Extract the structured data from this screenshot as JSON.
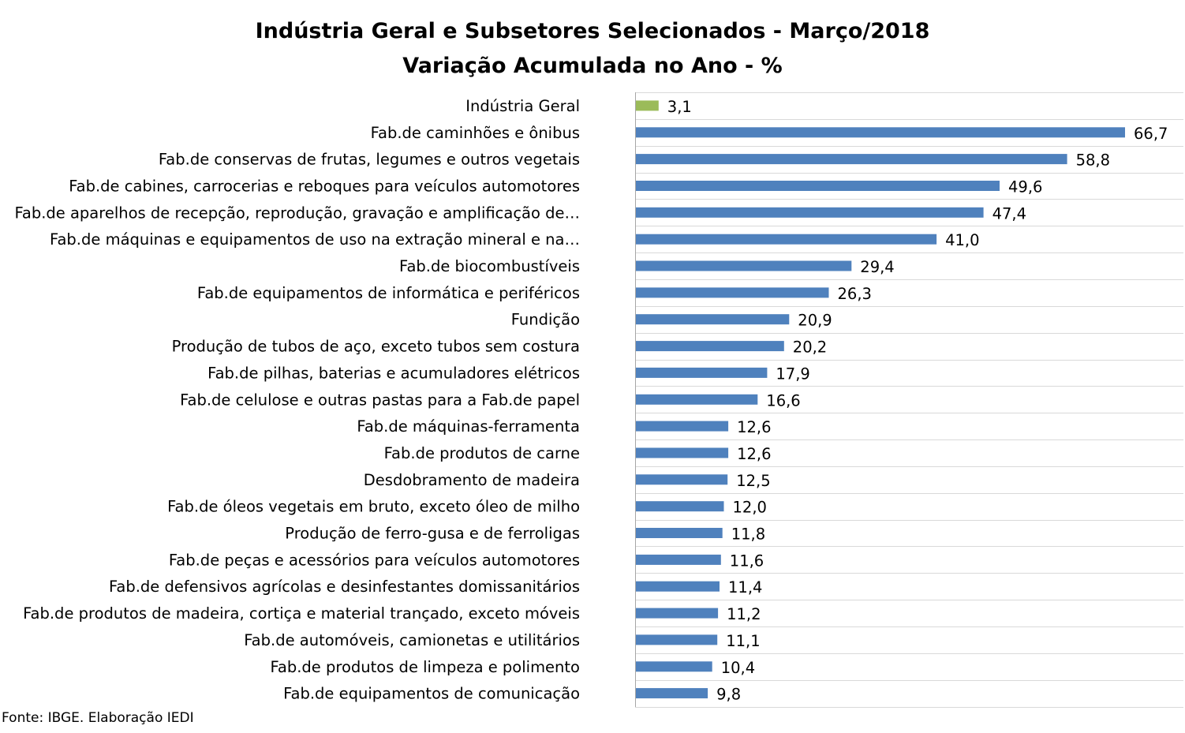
{
  "chart_data": {
    "type": "bar",
    "orientation": "horizontal",
    "title": "Indústria Geral e Subsetores Selecionados - Março/2018",
    "subtitle": "Variação Acumulada no Ano - %",
    "categories": [
      "Indústria Geral",
      "Fab.de caminhões e ônibus",
      "Fab.de conservas de frutas, legumes e outros vegetais",
      "Fab.de cabines, carrocerias e reboques para veículos automotores",
      "Fab.de aparelhos de recepção, reprodução, gravação e amplificação de…",
      "Fab.de máquinas e equipamentos de uso na extração mineral e na…",
      "Fab.de biocombustíveis",
      "Fab.de equipamentos de informática e periféricos",
      "Fundição",
      "Produção de tubos de aço, exceto tubos sem costura",
      "Fab.de pilhas, baterias e acumuladores elétricos",
      "Fab.de celulose e outras pastas para a Fab.de papel",
      "Fab.de máquinas-ferramenta",
      "Fab.de produtos de carne",
      "Desdobramento de madeira",
      "Fab.de óleos vegetais em bruto, exceto óleo de milho",
      "Produção de ferro-gusa e de ferroligas",
      "Fab.de peças e acessórios para veículos automotores",
      "Fab.de defensivos agrícolas e desinfestantes domissanitários",
      "Fab.de produtos de madeira, cortiça e material trançado, exceto móveis",
      "Fab.de automóveis, camionetas e utilitários",
      "Fab.de produtos de limpeza e polimento",
      "Fab.de equipamentos de comunicação"
    ],
    "values": [
      3.1,
      66.7,
      58.8,
      49.6,
      47.4,
      41.0,
      29.4,
      26.3,
      20.9,
      20.2,
      17.9,
      16.6,
      12.6,
      12.6,
      12.5,
      12.0,
      11.8,
      11.6,
      11.4,
      11.2,
      11.1,
      10.4,
      9.8
    ],
    "value_labels": [
      "3,1",
      "66,7",
      "58,8",
      "49,6",
      "47,4",
      "41,0",
      "29,4",
      "26,3",
      "20,9",
      "20,2",
      "17,9",
      "16,6",
      "12,6",
      "12,6",
      "12,5",
      "12,0",
      "11,8",
      "11,6",
      "11,4",
      "11,2",
      "11,1",
      "10,4",
      "9,8"
    ],
    "bar_colors": {
      "highlight": "#9BBB59",
      "default": "#4F81BD"
    },
    "highlight_category": "Indústria Geral",
    "xlim": [
      0,
      75
    ],
    "grid": "horizontal lines between categories",
    "legend": "none"
  },
  "footer": {
    "source": "Fonte: IBGE. Elaboração IEDI"
  }
}
